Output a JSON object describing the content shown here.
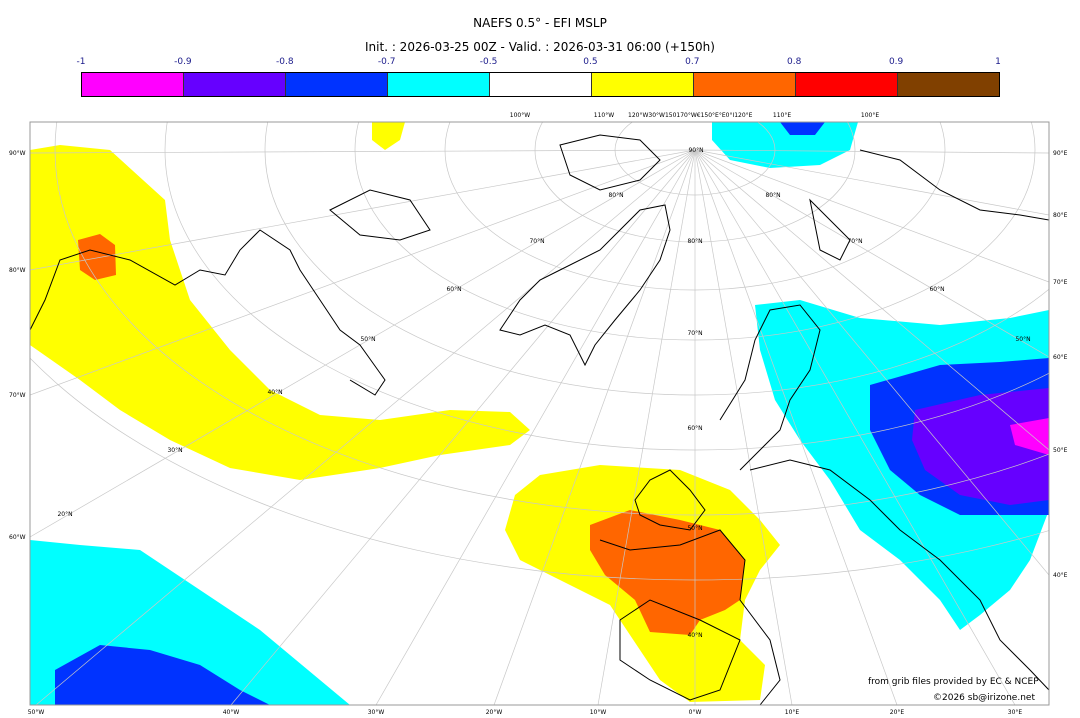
{
  "title": "NAEFS 0.5° - EFI MSLP",
  "subtitle": "Init. : 2026-03-25 00Z - Valid. : 2026-03-31 06:00 (+150h)",
  "colorbar": {
    "ticks": [
      "-1",
      "-0.9",
      "-0.8",
      "-0.7",
      "-0.5",
      "0.5",
      "0.7",
      "0.8",
      "0.9",
      "1"
    ],
    "colors": [
      "#ff00ff",
      "#6600ff",
      "#0033ff",
      "#00ffff",
      "#ffffff",
      "#ffff00",
      "#ff6600",
      "#ff0000",
      "#804000"
    ]
  },
  "map": {
    "left_labels": [
      "90°W",
      "80°W",
      "70°W",
      "60°W"
    ],
    "right_labels": [
      "90°E",
      "80°E",
      "70°E",
      "60°E",
      "50°E",
      "40°E"
    ],
    "bottom_labels": [
      "50°W",
      "40°W",
      "30°W",
      "20°W",
      "10°W",
      "0°W",
      "10°E",
      "20°E",
      "30°E"
    ],
    "top_labels": [
      "100°W",
      "110°W",
      "120°W30°W150170°W€150°E°E0°I120°E",
      "110°E",
      "100°E"
    ],
    "lat_labels": [
      "90°N",
      "80°N",
      "70°N",
      "60°N",
      "50°N",
      "40°N",
      "30°N",
      "20°N",
      "80°N",
      "70°N",
      "60°N",
      "50°N",
      "80°N",
      "70°N",
      "60°N",
      "50°N",
      "40°N"
    ]
  },
  "credits": {
    "source": "from grib files provided by EC & NCEP",
    "copyright": "©2026 sb@irizone.net"
  }
}
